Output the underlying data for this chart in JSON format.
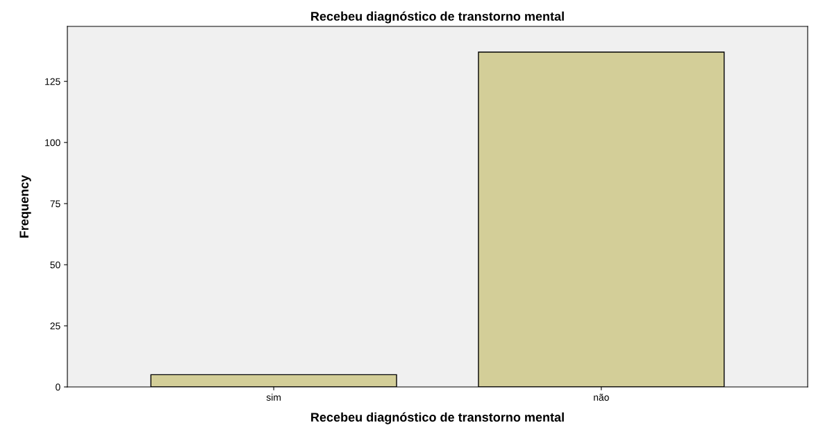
{
  "chart_data": {
    "type": "bar",
    "title": "Recebeu diagnóstico de transtorno mental",
    "xlabel": "Recebeu diagnóstico de transtorno mental",
    "ylabel": "Frequency",
    "categories": [
      "sim",
      "não"
    ],
    "values": [
      5,
      137
    ],
    "color": "#d3ce98",
    "ylim": [
      0,
      147.5
    ],
    "yticks": [
      0,
      25,
      50,
      75,
      100,
      125
    ],
    "grid": false,
    "legend": false
  }
}
